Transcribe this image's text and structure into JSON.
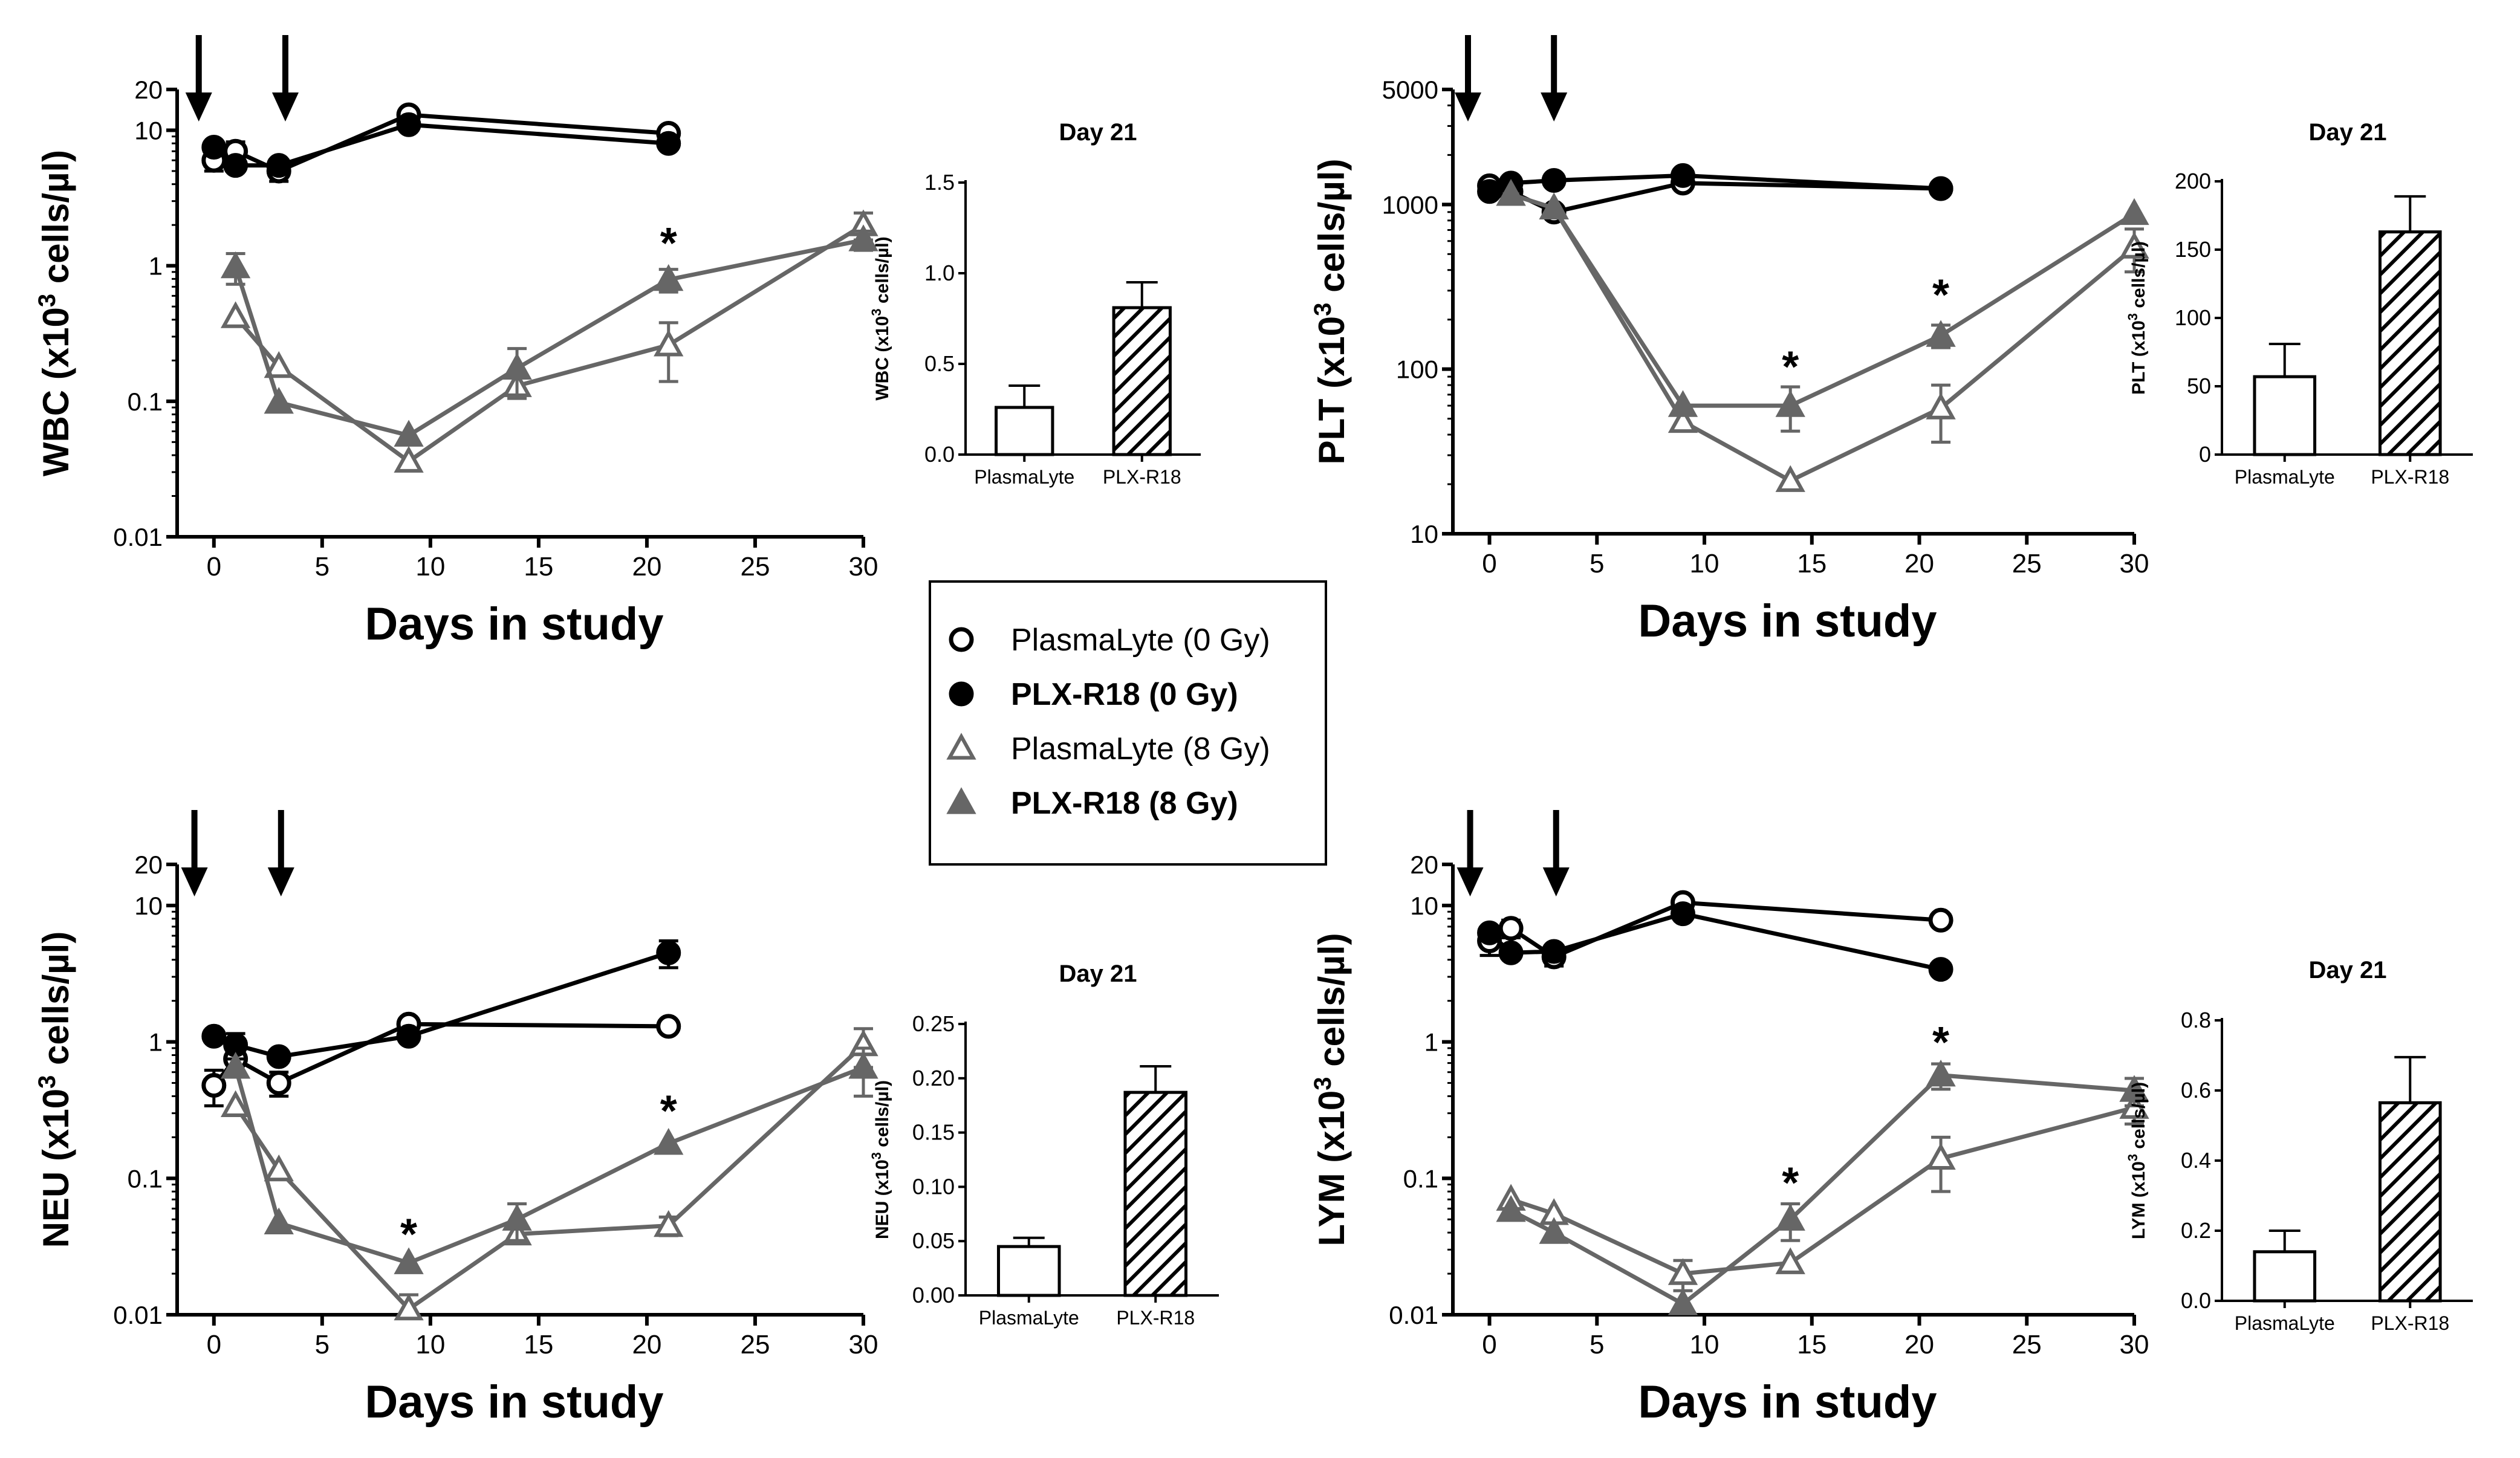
{
  "chart_data": [
    {
      "type": "line",
      "id": "wbc",
      "scale": "log",
      "ylabel_prefix": "WBC (x10",
      "ylabel_exp": "3",
      "ylabel_suffix": " cells/µl)",
      "xlabel": "Days in study",
      "ylim": [
        0.01,
        20
      ],
      "yticks": [
        {
          "v": 0.01,
          "label": "0.01"
        },
        {
          "v": 0.1,
          "label": "0.1"
        },
        {
          "v": 1,
          "label": "1"
        },
        {
          "v": 10,
          "label": "10"
        },
        {
          "v": 20,
          "label": "20"
        }
      ],
      "xlim": [
        -1,
        30
      ],
      "xticks": [
        {
          "v": 0,
          "label": "0"
        },
        {
          "v": 5,
          "label": "5"
        },
        {
          "v": 10,
          "label": "10"
        },
        {
          "v": 15,
          "label": "15"
        },
        {
          "v": 20,
          "label": "20"
        },
        {
          "v": 25,
          "label": "25"
        },
        {
          "v": 30,
          "label": "30"
        }
      ],
      "arrows": [
        -0.7,
        3.3
      ],
      "series": [
        {
          "name": "PlasmaLyte (0 Gy)",
          "color": "#000000",
          "marker": "circle",
          "filled": false,
          "x": [
            0,
            1,
            3,
            9,
            21
          ],
          "y": [
            6.0,
            7.0,
            5.0,
            13.0,
            9.5
          ],
          "err": [
            1.0,
            1.2,
            0.8,
            0,
            0
          ]
        },
        {
          "name": "PLX-R18 (0 Gy)",
          "color": "#000000",
          "marker": "circle",
          "filled": true,
          "x": [
            0,
            1,
            3,
            9,
            21
          ],
          "y": [
            7.5,
            5.5,
            5.5,
            11.0,
            8.0
          ],
          "err": [
            0,
            0,
            0,
            0,
            0
          ]
        },
        {
          "name": "PlasmaLyte (8 Gy)",
          "color": "#666666",
          "marker": "triangle",
          "filled": false,
          "x": [
            1,
            3,
            9,
            14,
            21,
            30
          ],
          "y": [
            0.42,
            0.18,
            0.036,
            0.13,
            0.26,
            2.0
          ],
          "err": [
            0,
            0,
            0,
            0,
            0.12,
            0.45
          ]
        },
        {
          "name": "PLX-R18 (8 Gy)",
          "color": "#666666",
          "marker": "triangle",
          "filled": true,
          "x": [
            1,
            3,
            9,
            14,
            21,
            30
          ],
          "y": [
            0.98,
            0.098,
            0.056,
            0.175,
            0.79,
            1.55
          ],
          "err": [
            0.25,
            0,
            0,
            0.07,
            0.15,
            0.25
          ]
        }
      ],
      "stars": [
        {
          "x": 21,
          "y": 1.55,
          "label": "*"
        }
      ],
      "inset": {
        "title": "Day 21",
        "ylabel_prefix": "WBC (x10",
        "ylabel_exp": "3",
        "ylabel_suffix": " cells/µl)",
        "ylim": [
          0,
          1.5
        ],
        "yticks": [
          {
            "v": 0,
            "label": "0.0"
          },
          {
            "v": 0.5,
            "label": "0.5"
          },
          {
            "v": 1.0,
            "label": "1.0"
          },
          {
            "v": 1.5,
            "label": "1.5"
          }
        ],
        "categories": [
          "PlasmaLyte",
          "PLX-R18"
        ],
        "values": [
          0.26,
          0.81
        ],
        "errors": [
          0.12,
          0.14
        ],
        "patterns": [
          "open",
          "hatched"
        ]
      }
    },
    {
      "type": "line",
      "id": "plt",
      "scale": "log",
      "ylabel_prefix": "PLT (x10",
      "ylabel_exp": "3",
      "ylabel_suffix": " cells/µl)",
      "xlabel": "Days in study",
      "ylim": [
        10,
        5000
      ],
      "yticks": [
        {
          "v": 10,
          "label": "10"
        },
        {
          "v": 100,
          "label": "100"
        },
        {
          "v": 1000,
          "label": "1000"
        },
        {
          "v": 5000,
          "label": "5000"
        }
      ],
      "xlim": [
        -1,
        30
      ],
      "xticks": [
        {
          "v": 0,
          "label": "0"
        },
        {
          "v": 5,
          "label": "5"
        },
        {
          "v": 10,
          "label": "10"
        },
        {
          "v": 15,
          "label": "15"
        },
        {
          "v": 20,
          "label": "20"
        },
        {
          "v": 25,
          "label": "25"
        },
        {
          "v": 30,
          "label": "30"
        }
      ],
      "arrows": [
        -1.0,
        3.0
      ],
      "series": [
        {
          "name": "PlasmaLyte (0 Gy)",
          "color": "#000000",
          "marker": "circle",
          "filled": false,
          "x": [
            0,
            1,
            3,
            9,
            21
          ],
          "y": [
            1300,
            1200,
            900,
            1350,
            1250
          ],
          "err": [
            0,
            0,
            0,
            0,
            0
          ]
        },
        {
          "name": "PLX-R18 (0 Gy)",
          "color": "#000000",
          "marker": "circle",
          "filled": true,
          "x": [
            0,
            1,
            3,
            9,
            21
          ],
          "y": [
            1200,
            1350,
            1400,
            1500,
            1250
          ],
          "err": [
            0,
            0,
            0,
            0,
            0
          ]
        },
        {
          "name": "PlasmaLyte (8 Gy)",
          "color": "#666666",
          "marker": "triangle",
          "filled": false,
          "x": [
            1,
            3,
            9,
            14,
            21,
            30
          ],
          "y": [
            1150,
            950,
            48,
            21,
            58,
            550
          ],
          "err": [
            0,
            0,
            0,
            0,
            22,
            160
          ]
        },
        {
          "name": "PLX-R18 (8 Gy)",
          "color": "#666666",
          "marker": "triangle",
          "filled": true,
          "x": [
            1,
            3,
            9,
            14,
            21,
            30
          ],
          "y": [
            1150,
            950,
            60,
            60,
            160,
            880
          ],
          "err": [
            0,
            0,
            0,
            18,
            25,
            0
          ]
        }
      ],
      "stars": [
        {
          "x": 14,
          "y": 108,
          "label": "*"
        },
        {
          "x": 21,
          "y": 295,
          "label": "*"
        }
      ],
      "inset": {
        "title": "Day 21",
        "ylabel_prefix": "PLT (x10",
        "ylabel_exp": "3",
        "ylabel_suffix": " cells/µl)",
        "ylim": [
          0,
          200
        ],
        "yticks": [
          {
            "v": 0,
            "label": "0"
          },
          {
            "v": 50,
            "label": "50"
          },
          {
            "v": 100,
            "label": "100"
          },
          {
            "v": 150,
            "label": "150"
          },
          {
            "v": 200,
            "label": "200"
          }
        ],
        "categories": [
          "PlasmaLyte",
          "PLX-R18"
        ],
        "values": [
          57,
          163
        ],
        "errors": [
          24,
          26
        ],
        "patterns": [
          "open",
          "hatched"
        ]
      }
    },
    {
      "type": "line",
      "id": "neu",
      "scale": "log",
      "ylabel_prefix": "NEU (x10",
      "ylabel_exp": "3",
      "ylabel_suffix": " cells/µl)",
      "xlabel": "Days in study",
      "ylim": [
        0.01,
        20
      ],
      "yticks": [
        {
          "v": 0.01,
          "label": "0.01"
        },
        {
          "v": 0.1,
          "label": "0.1"
        },
        {
          "v": 1,
          "label": "1"
        },
        {
          "v": 10,
          "label": "10"
        },
        {
          "v": 20,
          "label": "20"
        }
      ],
      "xlim": [
        -1,
        30
      ],
      "xticks": [
        {
          "v": 0,
          "label": "0"
        },
        {
          "v": 5,
          "label": "5"
        },
        {
          "v": 10,
          "label": "10"
        },
        {
          "v": 15,
          "label": "15"
        },
        {
          "v": 20,
          "label": "20"
        },
        {
          "v": 25,
          "label": "25"
        },
        {
          "v": 30,
          "label": "30"
        }
      ],
      "arrows": [
        -0.9,
        3.1
      ],
      "series": [
        {
          "name": "PlasmaLyte (0 Gy)",
          "color": "#000000",
          "marker": "circle",
          "filled": false,
          "x": [
            0,
            1,
            3,
            9,
            21
          ],
          "y": [
            0.48,
            0.75,
            0.5,
            1.35,
            1.3
          ],
          "err": [
            0.14,
            0.15,
            0.1,
            0,
            0
          ]
        },
        {
          "name": "PLX-R18 (0 Gy)",
          "color": "#000000",
          "marker": "circle",
          "filled": true,
          "x": [
            0,
            1,
            3,
            9,
            21
          ],
          "y": [
            1.1,
            0.95,
            0.78,
            1.1,
            4.5
          ],
          "err": [
            0,
            0.2,
            0,
            0,
            1.0
          ]
        },
        {
          "name": "PlasmaLyte (8 Gy)",
          "color": "#666666",
          "marker": "triangle",
          "filled": false,
          "x": [
            1,
            3,
            9,
            14,
            21,
            30
          ],
          "y": [
            0.34,
            0.115,
            0.011,
            0.039,
            0.045,
            0.95
          ],
          "err": [
            0,
            0,
            0.003,
            0,
            0.007,
            0.3
          ]
        },
        {
          "name": "PLX-R18 (8 Gy)",
          "color": "#666666",
          "marker": "triangle",
          "filled": true,
          "x": [
            1,
            3,
            9,
            14,
            21,
            30
          ],
          "y": [
            0.65,
            0.047,
            0.024,
            0.05,
            0.18,
            0.65
          ],
          "err": [
            0,
            0,
            0,
            0.015,
            0,
            0.25
          ]
        }
      ],
      "stars": [
        {
          "x": 9,
          "y": 0.041,
          "label": "*"
        },
        {
          "x": 21,
          "y": 0.33,
          "label": "*"
        }
      ],
      "inset": {
        "title": "Day 21",
        "ylabel_prefix": "NEU (x10",
        "ylabel_exp": "3",
        "ylabel_suffix": " cells/µl)",
        "ylim": [
          0,
          0.25
        ],
        "yticks": [
          {
            "v": 0,
            "label": "0.00"
          },
          {
            "v": 0.05,
            "label": "0.05"
          },
          {
            "v": 0.1,
            "label": "0.10"
          },
          {
            "v": 0.15,
            "label": "0.15"
          },
          {
            "v": 0.2,
            "label": "0.20"
          },
          {
            "v": 0.25,
            "label": "0.25"
          }
        ],
        "categories": [
          "PlasmaLyte",
          "PLX-R18"
        ],
        "values": [
          0.045,
          0.187
        ],
        "errors": [
          0.008,
          0.024
        ],
        "patterns": [
          "open",
          "hatched"
        ]
      }
    },
    {
      "type": "line",
      "id": "lym",
      "scale": "log",
      "ylabel_prefix": "LYM (x10",
      "ylabel_exp": "3",
      "ylabel_suffix": " cells/µl)",
      "xlabel": "Days in study",
      "ylim": [
        0.01,
        20
      ],
      "yticks": [
        {
          "v": 0.01,
          "label": "0.01"
        },
        {
          "v": 0.1,
          "label": "0.1"
        },
        {
          "v": 1,
          "label": "1"
        },
        {
          "v": 10,
          "label": "10"
        },
        {
          "v": 20,
          "label": "20"
        }
      ],
      "xlim": [
        -1,
        30
      ],
      "xticks": [
        {
          "v": 0,
          "label": "0"
        },
        {
          "v": 5,
          "label": "5"
        },
        {
          "v": 10,
          "label": "10"
        },
        {
          "v": 15,
          "label": "15"
        },
        {
          "v": 20,
          "label": "20"
        },
        {
          "v": 25,
          "label": "25"
        },
        {
          "v": 30,
          "label": "30"
        }
      ],
      "arrows": [
        -0.9,
        3.1
      ],
      "series": [
        {
          "name": "PlasmaLyte (0 Gy)",
          "color": "#000000",
          "marker": "circle",
          "filled": false,
          "x": [
            0,
            1,
            3,
            9,
            21
          ],
          "y": [
            5.5,
            6.8,
            4.2,
            10.5,
            7.8
          ],
          "err": [
            1.2,
            1.0,
            0.6,
            0,
            0
          ]
        },
        {
          "name": "PLX-R18 (0 Gy)",
          "color": "#000000",
          "marker": "circle",
          "filled": true,
          "x": [
            0,
            1,
            3,
            9,
            21
          ],
          "y": [
            6.3,
            4.5,
            4.6,
            8.7,
            3.4
          ],
          "err": [
            0,
            0,
            0,
            0,
            0
          ]
        },
        {
          "name": "PlasmaLyte (8 Gy)",
          "color": "#666666",
          "marker": "triangle",
          "filled": false,
          "x": [
            1,
            3,
            9,
            14,
            21,
            30
          ],
          "y": [
            0.07,
            0.055,
            0.02,
            0.024,
            0.14,
            0.33
          ],
          "err": [
            0,
            0,
            0.005,
            0,
            0.06,
            0.08
          ]
        },
        {
          "name": "PLX-R18 (8 Gy)",
          "color": "#666666",
          "marker": "triangle",
          "filled": true,
          "x": [
            1,
            3,
            9,
            14,
            21,
            30
          ],
          "y": [
            0.058,
            0.04,
            0.012,
            0.05,
            0.57,
            0.44
          ],
          "err": [
            0,
            0,
            0,
            0.015,
            0.12,
            0.1
          ]
        }
      ],
      "stars": [
        {
          "x": 14,
          "y": 0.098,
          "label": "*"
        },
        {
          "x": 21,
          "y": 1.05,
          "label": "*"
        }
      ],
      "inset": {
        "title": "Day 21",
        "ylabel_prefix": "LYM (x10",
        "ylabel_exp": "3",
        "ylabel_suffix": " cells/µl)",
        "ylim": [
          0,
          0.8
        ],
        "yticks": [
          {
            "v": 0,
            "label": "0.0"
          },
          {
            "v": 0.2,
            "label": "0.2"
          },
          {
            "v": 0.4,
            "label": "0.4"
          },
          {
            "v": 0.6,
            "label": "0.6"
          },
          {
            "v": 0.8,
            "label": "0.8"
          }
        ],
        "categories": [
          "PlasmaLyte",
          "PLX-R18"
        ],
        "values": [
          0.14,
          0.565
        ],
        "errors": [
          0.06,
          0.13
        ],
        "patterns": [
          "open",
          "hatched"
        ]
      }
    }
  ],
  "legend": {
    "items": [
      {
        "label": "PlasmaLyte (0 Gy)",
        "marker": "circle",
        "filled": false,
        "color": "#000000",
        "bold": false
      },
      {
        "label": "PLX-R18 (0 Gy)",
        "marker": "circle",
        "filled": true,
        "color": "#000000",
        "bold": true
      },
      {
        "label": "PlasmaLyte (8 Gy)",
        "marker": "triangle",
        "filled": false,
        "color": "#666666",
        "bold": false
      },
      {
        "label": "PLX-R18 (8 Gy)",
        "marker": "triangle",
        "filled": true,
        "color": "#666666",
        "bold": true
      }
    ]
  }
}
